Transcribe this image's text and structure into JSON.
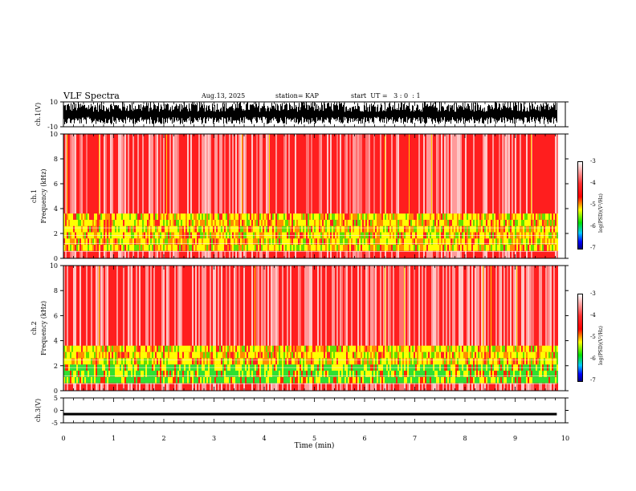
{
  "header": {
    "title": "VLF Spectra",
    "date": "Aug.13, 2025",
    "station": "station= KAP",
    "start": "start  UT =   3 : 0  : 1"
  },
  "chart_data": [
    {
      "type": "line",
      "name": "ch1-waveform",
      "ylabel": "ch.1(V)",
      "ylim": [
        -10,
        10
      ],
      "yticks": [
        "10",
        "-10"
      ],
      "note": "dense black waveform, roughly -7 to +10 V"
    },
    {
      "type": "heatmap",
      "name": "ch1-spectrogram",
      "ylabel": "ch.1\nFrequency (kHz)",
      "ylim": [
        0,
        10
      ],
      "yticks": [
        "0",
        "2",
        "4",
        "6",
        "8",
        "10"
      ],
      "colorbar": {
        "label": "log(PSD)(V²/Hz)",
        "range": [
          -7,
          -3
        ],
        "ticks": [
          "-3",
          "-4",
          "-5",
          "-6",
          "-7"
        ]
      }
    },
    {
      "type": "heatmap",
      "name": "ch2-spectrogram",
      "ylabel": "ch.2\nFrequency (kHz)",
      "ylim": [
        0,
        10
      ],
      "yticks": [
        "0",
        "2",
        "4",
        "6",
        "8",
        "10"
      ],
      "colorbar": {
        "label": "log(PSD)(V²/Hz)",
        "range": [
          -7,
          -3
        ],
        "ticks": [
          "-3",
          "-4",
          "-5",
          "-6",
          "-7"
        ]
      }
    },
    {
      "type": "line",
      "name": "ch3-waveform",
      "ylabel": "ch.3(V)",
      "ylim": [
        -5,
        5
      ],
      "yticks": [
        "5",
        "0",
        "-5"
      ],
      "note": "flat thick band near -1.5 V"
    }
  ],
  "xaxis": {
    "label": "Time (min)",
    "ticks": [
      "0",
      "1",
      "2",
      "3",
      "4",
      "5",
      "6",
      "7",
      "8",
      "9",
      "10"
    ],
    "xlim": [
      0,
      10
    ],
    "data_end": 9.83
  },
  "colors": {
    "waveform": "#000000",
    "background": "#ffffff"
  }
}
